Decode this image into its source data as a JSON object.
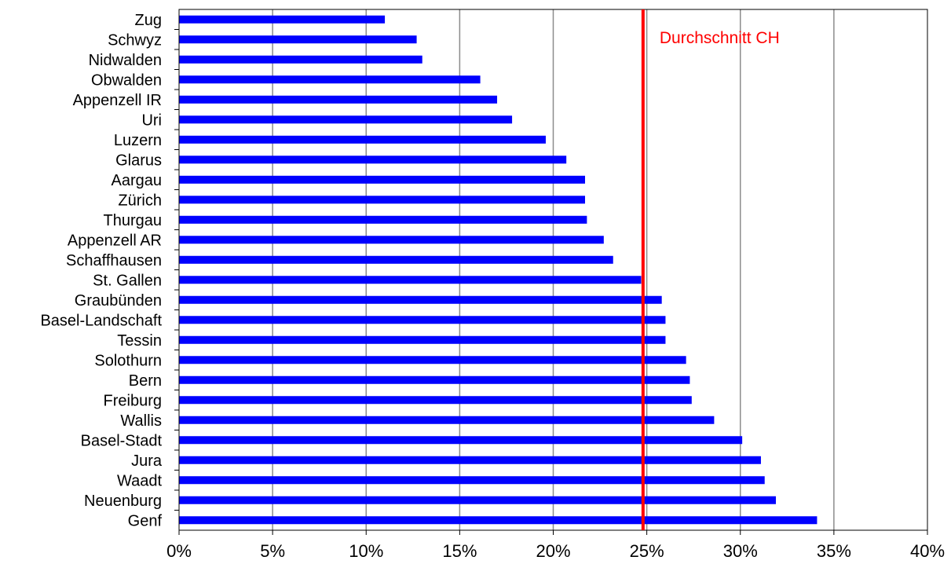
{
  "chart_data": {
    "type": "bar",
    "orientation": "horizontal",
    "categories": [
      "Zug",
      "Schwyz",
      "Nidwalden",
      "Obwalden",
      "Appenzell IR",
      "Uri",
      "Luzern",
      "Glarus",
      "Aargau",
      "Zürich",
      "Thurgau",
      "Appenzell AR",
      "Schaffhausen",
      "St. Gallen",
      "Graubünden",
      "Basel-Landschaft",
      "Tessin",
      "Solothurn",
      "Bern",
      "Freiburg",
      "Wallis",
      "Basel-Stadt",
      "Jura",
      "Waadt",
      "Neuenburg",
      "Genf"
    ],
    "values": [
      11.0,
      12.7,
      13.0,
      16.1,
      17.0,
      17.8,
      19.6,
      20.7,
      21.7,
      21.7,
      21.8,
      22.7,
      23.2,
      24.7,
      25.8,
      26.0,
      26.0,
      27.1,
      27.3,
      27.4,
      28.6,
      30.1,
      31.1,
      31.3,
      31.9,
      34.1
    ],
    "xlim": [
      0,
      40
    ],
    "x_ticks": [
      0,
      5,
      10,
      15,
      20,
      25,
      30,
      35,
      40
    ],
    "tick_labels": [
      "0%",
      "5%",
      "10%",
      "15%",
      "20%",
      "25%",
      "30%",
      "35%",
      "40%"
    ],
    "reference_line": {
      "value": 24.8,
      "label": "Durchschnitt CH",
      "color": "#ff0000"
    },
    "bar_color": "#0000ff",
    "grid": true,
    "legend": false
  }
}
